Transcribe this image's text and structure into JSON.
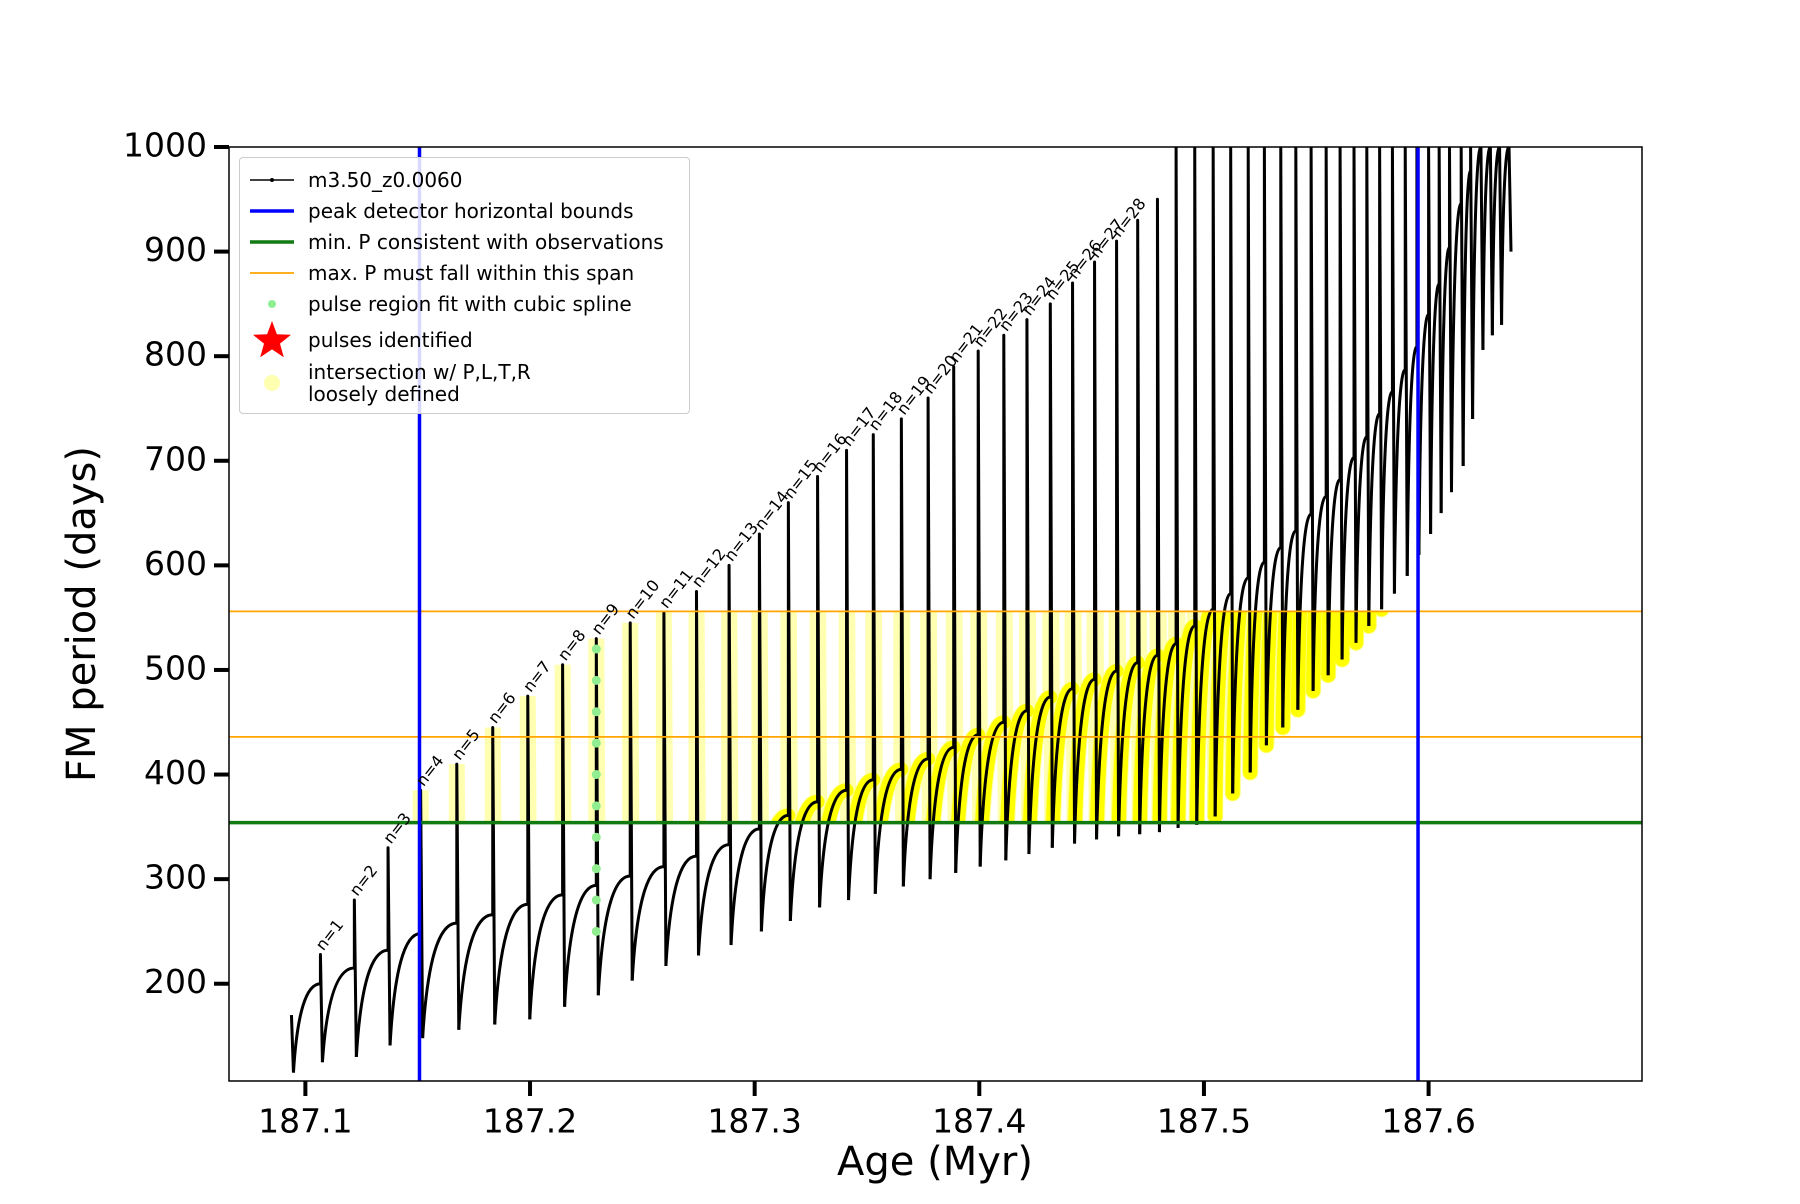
{
  "chart_data": {
    "type": "line",
    "xlabel": "Age (Myr)",
    "ylabel": "FM period (days)",
    "xlim": [
      187.066,
      187.695
    ],
    "ylim": [
      107,
      1000
    ],
    "xticks": [
      187.1,
      187.2,
      187.3,
      187.4,
      187.5,
      187.6
    ],
    "yticks": [
      200,
      300,
      400,
      500,
      600,
      700,
      800,
      900,
      1000
    ],
    "legend": "upper left",
    "series": [
      {
        "name": "m3.50_z0.0060",
        "kind": "pulses",
        "color": "#000000",
        "linewidth": 3,
        "x": [
          187.0938,
          187.1067,
          187.1218,
          187.1368,
          187.1513,
          187.1674,
          187.1834,
          187.199,
          187.2145,
          187.2295,
          187.2446,
          187.2596,
          187.2741,
          187.2886,
          187.3021,
          187.315,
          187.328,
          187.3409,
          187.3528,
          187.3653,
          187.3772,
          187.3886,
          187.3995,
          187.4109,
          187.4212,
          187.4316,
          187.4415,
          187.4513,
          187.4611,
          187.4705,
          187.4793,
          187.4876,
          187.4959,
          187.5041,
          187.5119,
          187.5197,
          187.5269,
          187.5342,
          187.5409,
          187.5477,
          187.5544,
          187.5606,
          187.5668,
          187.5725,
          187.5782,
          187.5839,
          187.5896,
          187.5948,
          187.6,
          187.6047,
          187.6093,
          187.6145,
          187.6187,
          187.6233,
          187.6275,
          187.6316,
          187.6358
        ],
        "plateau": [
          170,
          200,
          215,
          232,
          248,
          258,
          266,
          276,
          285,
          294,
          303,
          312,
          322,
          333,
          348,
          361,
          374,
          385,
          395,
          405,
          415,
          426,
          438,
          450,
          461,
          474,
          482,
          491,
          499,
          507,
          514,
          525,
          542,
          558,
          573,
          588,
          603,
          617,
          633,
          649,
          666,
          682,
          703,
          723,
          745,
          766,
          787,
          809,
          840,
          869,
          904,
          946,
          977,
          1000,
          1000,
          1000,
          1000
        ],
        "values": [
          170,
          228,
          280,
          330,
          385,
          410,
          445,
          475,
          505,
          530,
          545,
          555,
          575,
          600,
          630,
          660,
          685,
          710,
          725,
          740,
          760,
          790,
          805,
          820,
          835,
          850,
          870,
          890,
          910,
          930,
          950,
          1000,
          1000,
          1000,
          1000,
          1000,
          1000,
          1000,
          1000,
          1000,
          1000,
          1000,
          1000,
          1000,
          1000,
          1000,
          1000,
          1000,
          1000,
          1000,
          1000,
          1000,
          1000,
          1000,
          1000,
          1000,
          1000
        ],
        "trough": [
          115,
          125,
          130,
          141,
          148,
          156,
          161,
          166,
          178,
          189,
          203,
          217,
          227,
          237,
          250,
          260,
          273,
          280,
          286,
          293,
          300,
          306,
          312,
          318,
          324,
          330,
          334,
          338,
          341,
          343,
          345,
          349,
          352,
          360,
          382,
          402,
          428,
          445,
          462,
          480,
          495,
          510,
          526,
          542,
          558,
          573,
          590,
          610,
          630,
          650,
          670,
          695,
          740,
          806,
          820,
          830,
          900
        ],
        "annotations": [
          "n=1",
          "n=2",
          "n=3",
          "n=4",
          "n=5",
          "n=6",
          "n=7",
          "n=8",
          "n=9",
          "n=10",
          "n=11",
          "n=12",
          "n=13",
          "n=14",
          "n=15",
          "n=16",
          "n=17",
          "n=18",
          "n=19",
          "n=20",
          "n=21",
          "n=22",
          "n=23",
          "n=24",
          "n=25",
          "n=26",
          "n=27",
          "n=28"
        ]
      },
      {
        "name": "peak detector horizontal bounds",
        "kind": "vline",
        "color": "#0000ff",
        "linewidth": 3.5,
        "x": [
          187.1508,
          187.5953
        ]
      },
      {
        "name": "min. P consistent with observations",
        "kind": "hline",
        "color": "#117a11",
        "linewidth": 3.5,
        "values": [
          354
        ]
      },
      {
        "name": "max. P must fall within this span",
        "kind": "hline",
        "color": "#ffa500",
        "linewidth": 1.8,
        "values": [
          436,
          556
        ]
      },
      {
        "name": "pulse region fit with cubic spline",
        "kind": "points",
        "color": "#90ee90",
        "x": [
          187.2295,
          187.2295,
          187.2295,
          187.2295,
          187.2295,
          187.2295,
          187.2295,
          187.2295,
          187.2295,
          187.2295
        ],
        "values": [
          250,
          280,
          310,
          340,
          370,
          400,
          430,
          460,
          490,
          520
        ]
      },
      {
        "name": "pulses identified",
        "kind": "star",
        "color": "#ff0000",
        "values": []
      },
      {
        "name": "intersection w/ P,L,T,R\nloosely defined",
        "kind": "band",
        "color": "#ffff00",
        "alpha": 0.3
      }
    ]
  }
}
